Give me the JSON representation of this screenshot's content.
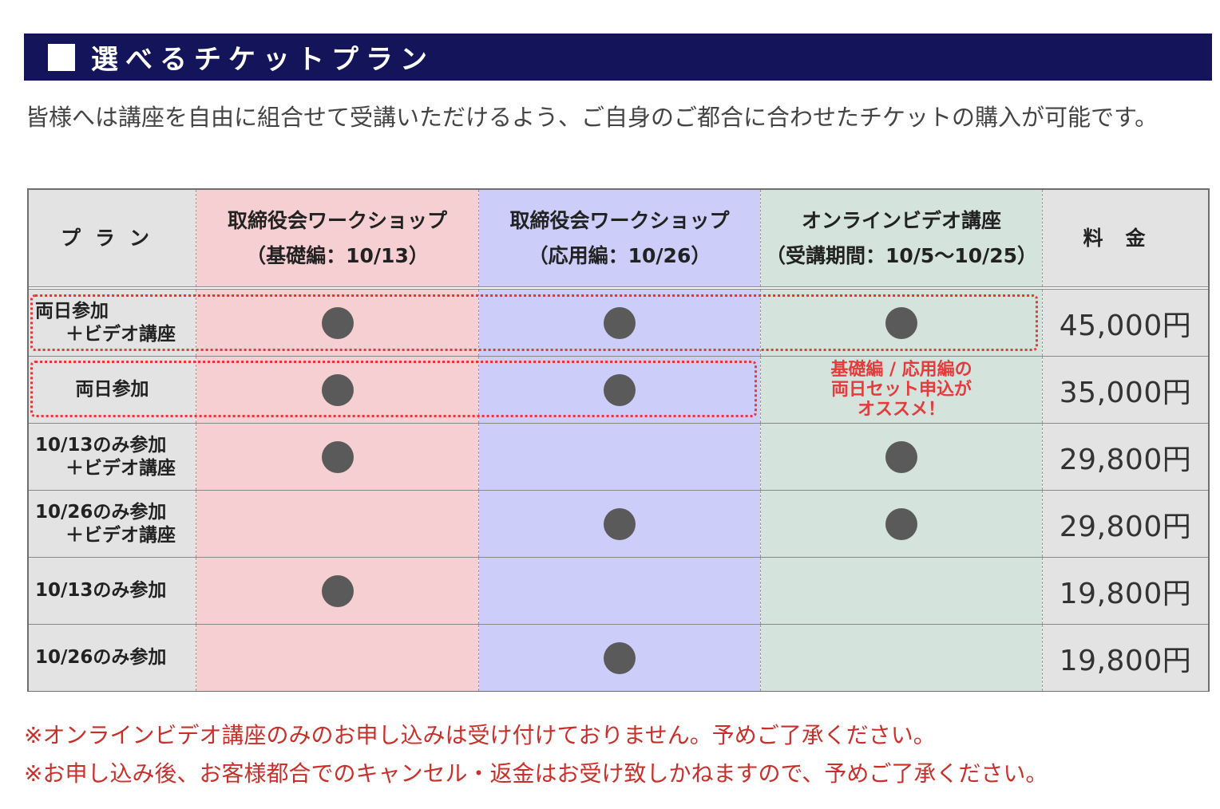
{
  "header": {
    "title": "選べるチケットプラン",
    "colors": {
      "header_bg": "#13145a",
      "header_text": "#ffffff"
    }
  },
  "intro": "皆様へは講座を自由に組合せて受講いただけるよう、ご自身のご都合に合わせたチケットの購入が可能です。",
  "table": {
    "headers": {
      "plan": "プラン",
      "basic": [
        "取締役会ワークショップ",
        "（基礎編：10/13）"
      ],
      "applied": [
        "取締役会ワークショップ",
        "（応用編：10/26）"
      ],
      "video": [
        "オンラインビデオ講座",
        "（受講期間：10/5～10/25）"
      ],
      "price": "料金"
    },
    "rows": [
      {
        "plan": [
          "両日参加",
          "＋ビデオ講座"
        ],
        "basic": true,
        "applied": true,
        "video": true,
        "price": "45,000円"
      },
      {
        "plan": [
          "両日参加"
        ],
        "basic": true,
        "applied": true,
        "video": false,
        "price": "35,000円"
      },
      {
        "plan": [
          "10/13のみ参加",
          "＋ビデオ講座"
        ],
        "basic": true,
        "applied": false,
        "video": true,
        "price": "29,800円"
      },
      {
        "plan": [
          "10/26のみ参加",
          "＋ビデオ講座"
        ],
        "basic": false,
        "applied": true,
        "video": true,
        "price": "29,800円"
      },
      {
        "plan": [
          "10/13のみ参加"
        ],
        "basic": true,
        "applied": false,
        "video": false,
        "price": "19,800円"
      },
      {
        "plan": [
          "10/26のみ参加"
        ],
        "basic": false,
        "applied": true,
        "video": false,
        "price": "19,800円"
      }
    ],
    "promo": [
      "基礎編 / 応用編の",
      "両日セット申込が",
      "オススメ！"
    ],
    "colors": {
      "plan_col": "#e3e3e3",
      "basic_col": "#f6cfd2",
      "applied_col": "#cccdf9",
      "video_col": "#d5e3dd",
      "price_col": "#e3e3e3",
      "dot": "#5a5a5a",
      "highlight": "#e23a3a"
    }
  },
  "notes": [
    "※オンラインビデオ講座のみのお申し込みは受け付けておりません。予めご了承ください。",
    "※お申し込み後、お客様都合でのキャンセル・返金はお受け致しかねますので、予めご了承ください。"
  ]
}
